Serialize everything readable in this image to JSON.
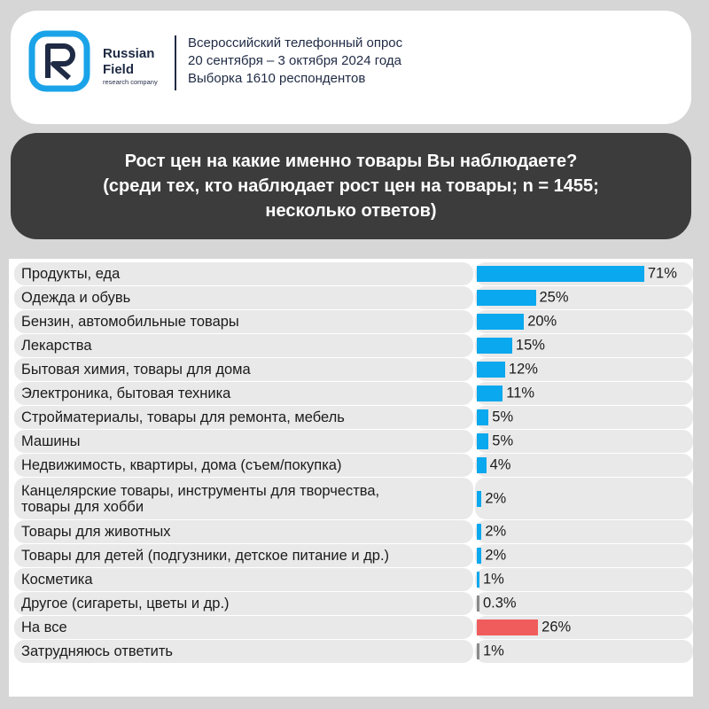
{
  "brand": {
    "name_line1": "Russian",
    "name_line2": "Field",
    "tagline": "research company"
  },
  "survey": {
    "line1": "Всероссийский телефонный опрос",
    "line2": "20 сентября – 3 октября 2024 года",
    "line3": "Выборка 1610 респондентов"
  },
  "colors": {
    "bar_default": "#0aa8ee",
    "bar_all": "#f05c5c",
    "bar_unsure": "#8a8a8a",
    "logo_blue": "#1aa3e8"
  },
  "chart_data": {
    "type": "bar",
    "orientation": "horizontal",
    "title_lines": [
      "Рост цен на какие именно товары Вы наблюдаете?",
      "(среди тех, кто наблюдает рост цен на товары; n = 1455;",
      "несколько ответов)"
    ],
    "xlim": [
      0,
      100
    ],
    "unit": "%",
    "categories": [
      [
        "Продукты, еда"
      ],
      [
        "Одежда и обувь"
      ],
      [
        "Бензин, автомобильные товары"
      ],
      [
        "Лекарства"
      ],
      [
        "Бытовая химия, товары для дома"
      ],
      [
        "Электроника, бытовая техника"
      ],
      [
        "Стройматериалы, товары для ремонта, мебель"
      ],
      [
        "Машины"
      ],
      [
        "Недвижимость, квартиры, дома (съем/покупка)"
      ],
      [
        "Канцелярские товары, инструменты для творчества,",
        "товары для хобби"
      ],
      [
        "Товары для животных"
      ],
      [
        "Товары для детей (подгузники, детское питание и др.)"
      ],
      [
        "Косметика"
      ],
      [
        "Другое (сигареты, цветы и др.)"
      ],
      [
        "На все"
      ],
      [
        "Затрудняюсь ответить"
      ]
    ],
    "values": [
      71,
      25,
      20,
      15,
      12,
      11,
      5,
      5,
      4,
      2,
      2,
      2,
      1,
      0.3,
      26,
      1
    ],
    "value_labels": [
      "71%",
      "25%",
      "20%",
      "15%",
      "12%",
      "11%",
      "5%",
      "5%",
      "4%",
      "2%",
      "2%",
      "2%",
      "1%",
      "0.3%",
      "26%",
      "1%"
    ],
    "bar_colors": [
      "default",
      "default",
      "default",
      "default",
      "default",
      "default",
      "default",
      "default",
      "default",
      "default",
      "default",
      "default",
      "default",
      "unsure",
      "all",
      "unsure"
    ]
  }
}
